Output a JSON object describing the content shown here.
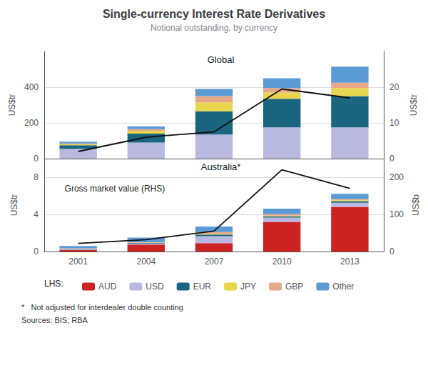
{
  "chart_data": [
    {
      "type": "bar",
      "stacked": true,
      "title": "Single-currency Interest Rate Derivatives",
      "subtitle": "Notional outstanding, by currency",
      "label": "Global",
      "categories": [
        "2001",
        "2004",
        "2007",
        "2010",
        "2013"
      ],
      "series": [
        {
          "name": "USD",
          "color": "#b8b8e0",
          "values": [
            55,
            90,
            135,
            175,
            175
          ]
        },
        {
          "name": "EUR",
          "color": "#1a6680",
          "values": [
            20,
            50,
            130,
            160,
            175
          ]
        },
        {
          "name": "JPY",
          "color": "#e8d44d",
          "values": [
            5,
            15,
            50,
            35,
            45
          ]
        },
        {
          "name": "GBP",
          "color": "#e8a888",
          "values": [
            5,
            10,
            35,
            25,
            30
          ]
        },
        {
          "name": "Other",
          "color": "#5b9bd5",
          "values": [
            10,
            15,
            40,
            55,
            90
          ]
        },
        {
          "type": "line",
          "axis": "y2",
          "color": "#111111",
          "values": [
            2.0,
            6.0,
            7.5,
            19.5,
            17.0
          ]
        }
      ],
      "ylabel": "US$tr",
      "y2label": "US$tr",
      "ylim": [
        0,
        600
      ],
      "yticks": [
        0,
        200,
        400
      ],
      "y2lim": [
        0,
        30
      ],
      "y2ticks": [
        0,
        10,
        20
      ],
      "grid": true,
      "tick_labels": "y"
    },
    {
      "type": "bar",
      "stacked": true,
      "label": "Australia*",
      "annotations": [
        "Gross market value (RHS)"
      ],
      "legend_title": "LHS:",
      "footnotes": [
        "*   Not adjusted for interdealer double counting",
        "Sources: BIS; RBA"
      ],
      "categories": [
        "2001",
        "2004",
        "2007",
        "2010",
        "2013"
      ],
      "series": [
        {
          "name": "AUD",
          "color": "#cc2222",
          "values": [
            0.18,
            0.75,
            0.9,
            3.2,
            4.8
          ]
        },
        {
          "name": "USD",
          "color": "#b8b8e0",
          "values": [
            0.08,
            0.12,
            0.75,
            0.45,
            0.45
          ]
        },
        {
          "name": "EUR",
          "color": "#1a6680",
          "values": [
            0.04,
            0.05,
            0.18,
            0.13,
            0.18
          ]
        },
        {
          "name": "JPY",
          "color": "#e8d44d",
          "values": [
            0.03,
            0.04,
            0.08,
            0.08,
            0.08
          ]
        },
        {
          "name": "GBP",
          "color": "#e8a888",
          "values": [
            0.04,
            0.04,
            0.18,
            0.15,
            0.15
          ]
        },
        {
          "name": "Other",
          "color": "#5b9bd5",
          "values": [
            0.22,
            0.5,
            0.6,
            0.6,
            0.55
          ]
        },
        {
          "type": "line",
          "axis": "y2",
          "color": "#111111",
          "values": [
            22,
            32,
            55,
            220,
            170
          ]
        }
      ],
      "ylabel": "US$tr",
      "y2label": "US$b",
      "ylim": [
        0,
        10
      ],
      "yticks": [
        0,
        4,
        8
      ],
      "y2lim": [
        0,
        250
      ],
      "y2ticks": [
        0,
        100,
        200
      ],
      "grid": true,
      "legend": "bottom"
    }
  ]
}
